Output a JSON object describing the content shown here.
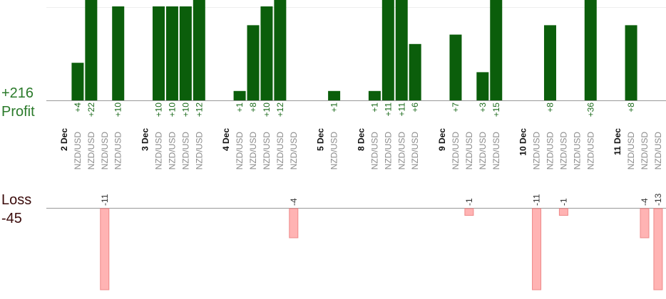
{
  "chart_data": {
    "type": "bar",
    "profit_total": {
      "value": 216,
      "label": "+216"
    },
    "profit_label": "Profit",
    "loss_label": "Loss",
    "loss_total": -45,
    "profit_color": "#0b5e0b",
    "loss_color": "#ffb3b3",
    "groups": [
      {
        "date": "2 Dec",
        "trades": [
          {
            "pair": "NZD/USD",
            "value": 4,
            "value_label": "+4"
          },
          {
            "pair": "NZD/USD",
            "value": 22,
            "value_label": "+22"
          },
          {
            "pair": "NZD/USD",
            "value": -11
          },
          {
            "pair": "NZD/USD",
            "value": 10,
            "value_label": "+10"
          }
        ]
      },
      {
        "date": "3 Dec",
        "trades": [
          {
            "pair": "NZD/USD",
            "value": 10,
            "value_label": "+10"
          },
          {
            "pair": "NZD/USD",
            "value": 10,
            "value_label": "+10"
          },
          {
            "pair": "NZD/USD",
            "value": 10,
            "value_label": "+10"
          },
          {
            "pair": "NZD/USD",
            "value": 12,
            "value_label": "+12"
          }
        ]
      },
      {
        "date": "4 Dec",
        "trades": [
          {
            "pair": "NZD/USD",
            "value": 1,
            "value_label": "+1"
          },
          {
            "pair": "NZD/USD",
            "value": 8,
            "value_label": "+8"
          },
          {
            "pair": "NZD/USD",
            "value": 10,
            "value_label": "+10"
          },
          {
            "pair": "NZD/USD",
            "value": 12,
            "value_label": "+12"
          },
          {
            "pair": "NZD/USD",
            "value": -4
          }
        ]
      },
      {
        "date": "5 Dec",
        "trades": [
          {
            "pair": "NZD/USD",
            "value": 1,
            "value_label": "+1"
          }
        ]
      },
      {
        "date": "8 Dec",
        "trades": [
          {
            "pair": "NZD/USD",
            "value": 1,
            "value_label": "+1"
          },
          {
            "pair": "NZD/USD",
            "value": 11,
            "value_label": "+11"
          },
          {
            "pair": "NZD/USD",
            "value": 11,
            "value_label": "+11"
          },
          {
            "pair": "NZD/USD",
            "value": 6,
            "value_label": "+6"
          }
        ]
      },
      {
        "date": "9 Dec",
        "trades": [
          {
            "pair": "NZD/USD",
            "value": 7,
            "value_label": "+7"
          },
          {
            "pair": "NZD/USD",
            "value": -1
          },
          {
            "pair": "NZD/USD",
            "value": 3,
            "value_label": "+3"
          },
          {
            "pair": "NZD/USD",
            "value": 15,
            "value_label": "+15"
          }
        ]
      },
      {
        "date": "10 Dec",
        "trades": [
          {
            "pair": "NZD/USD",
            "value": -11
          },
          {
            "pair": "NZD/USD",
            "value": 8,
            "value_label": "+8"
          },
          {
            "pair": "NZD/USD",
            "value": -1
          },
          {
            "pair": "NZD/USD",
            "value": null
          },
          {
            "pair": "NZD/USD",
            "value": 36,
            "value_label": "+36"
          }
        ]
      },
      {
        "date": "11 Dec",
        "trades": [
          {
            "pair": "NZD/USD",
            "value": 8,
            "value_label": "+8"
          },
          {
            "pair": "NZD/USD",
            "value": -4
          },
          {
            "pair": "NZD/USD",
            "value": -13
          }
        ]
      }
    ]
  }
}
